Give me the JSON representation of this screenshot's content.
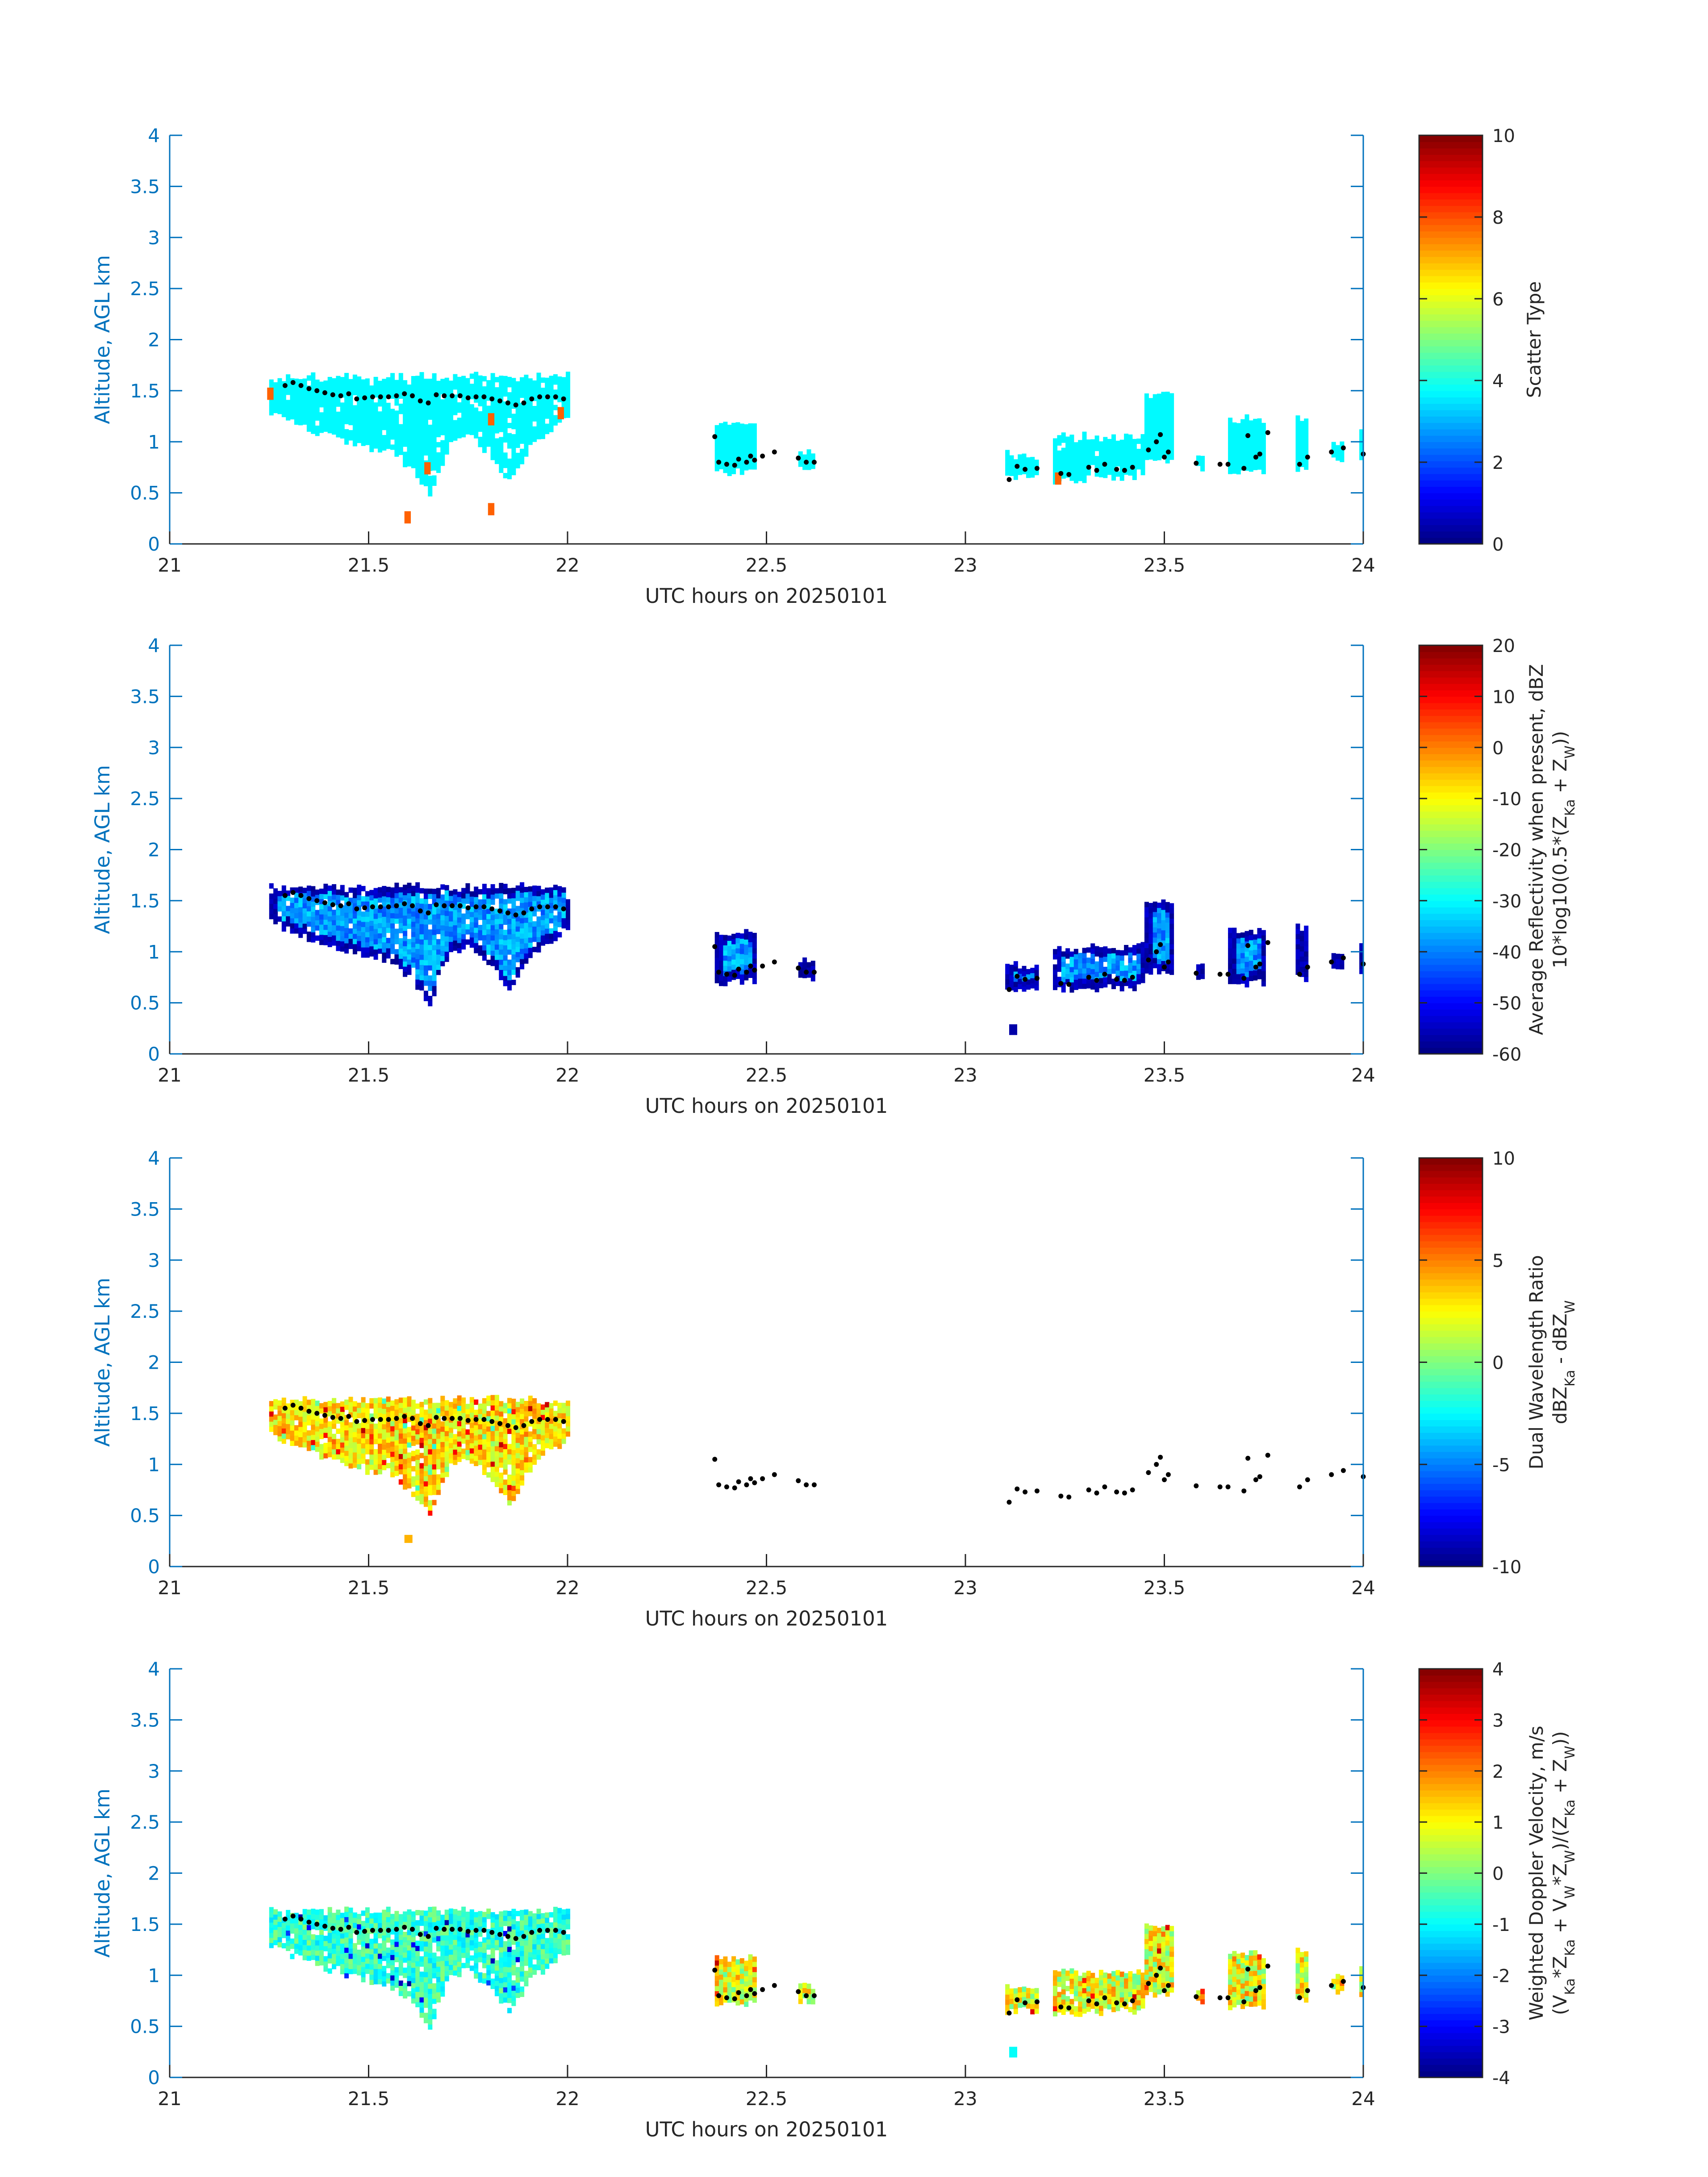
{
  "chart_data": [
    {
      "type": "heatmap",
      "panel": 1,
      "x_range": [
        21,
        24
      ],
      "y_range": [
        0,
        4
      ],
      "xticks": [
        "21",
        "21.5",
        "22",
        "22.5",
        "23",
        "23.5",
        "24"
      ],
      "yticks": [
        "0",
        "0.5",
        "1",
        "1.5",
        "2",
        "2.5",
        "3",
        "3.5",
        "4"
      ],
      "xlabel": "UTC hours on 20250101",
      "ylabel": "Altitude, AGL km",
      "colorbar": {
        "label": "Scatter Type",
        "range": [
          0,
          10
        ],
        "ticks": [
          "0",
          "2",
          "4",
          "6",
          "8",
          "10"
        ],
        "colormap": "jet"
      },
      "fill_value": 3.7,
      "fill_description": "mostly uniform cyan (scatter type ~3.7) with a few red-orange cells (~7.8)",
      "outlier_value": 7.8,
      "outlier_cells": [
        [
          21.245,
          1.47
        ],
        [
          21.975,
          1.28
        ],
        [
          21.8,
          1.22
        ],
        [
          21.59,
          0.26
        ],
        [
          21.8,
          0.34
        ],
        [
          21.64,
          0.74
        ],
        [
          23.225,
          0.64
        ]
      ],
      "grid": false
    },
    {
      "type": "heatmap",
      "panel": 2,
      "x_range": [
        21,
        24
      ],
      "y_range": [
        0,
        4
      ],
      "xticks": [
        "21",
        "21.5",
        "22",
        "22.5",
        "23",
        "23.5",
        "24"
      ],
      "yticks": [
        "0",
        "0.5",
        "1",
        "1.5",
        "2",
        "2.5",
        "3",
        "3.5",
        "4"
      ],
      "xlabel": "UTC hours on 20250101",
      "ylabel": "Altitude, AGL km",
      "colorbar": {
        "label_line1": "Average Reflectivity when present, dBZ",
        "label_line2": "10*log10(0.5*(Z",
        "label_sub1": "Ka",
        "label_mid": " + Z",
        "label_sub2": "W",
        "label_end": "))",
        "range": [
          -60,
          20
        ],
        "ticks": [
          "-60",
          "-50",
          "-40",
          "-30",
          "-20",
          "-10",
          "0",
          "10",
          "20"
        ],
        "colormap": "jet"
      },
      "fill_description": "about -35 to -45 dBZ in cloud interiors, about -55 dBZ at edges",
      "interior_value": -38,
      "edge_value": -56,
      "grid": false
    },
    {
      "type": "heatmap",
      "panel": 3,
      "x_range": [
        21,
        24
      ],
      "y_range": [
        0,
        4
      ],
      "xticks": [
        "21",
        "21.5",
        "22",
        "22.5",
        "23",
        "23.5",
        "24"
      ],
      "yticks": [
        "0",
        "0.5",
        "1",
        "1.5",
        "2",
        "2.5",
        "3",
        "3.5",
        "4"
      ],
      "xlabel": "UTC hours on 20250101",
      "ylabel": "Altitude, AGL km",
      "colorbar": {
        "label_line1": "Dual Wavelength Ratio",
        "label_line2": "dBZ",
        "label_sub1": "Ka",
        "label_mid": " - dBZ",
        "label_sub2": "W",
        "label_end": "",
        "range": [
          -10,
          10
        ],
        "ticks": [
          "-10",
          "-5",
          "0",
          "5",
          "10"
        ],
        "colormap": "jet"
      },
      "fill_description": "values mostly ~2 to 5 dB (yellow/orange) in 21.25–22 h cloud only",
      "value_range": [
        0.5,
        9
      ],
      "grid": false
    },
    {
      "type": "heatmap",
      "panel": 4,
      "x_range": [
        21,
        24
      ],
      "y_range": [
        0,
        4
      ],
      "xticks": [
        "21",
        "21.5",
        "22",
        "22.5",
        "23",
        "23.5",
        "24"
      ],
      "yticks": [
        "0",
        "0.5",
        "1",
        "1.5",
        "2",
        "2.5",
        "3",
        "3.5",
        "4"
      ],
      "xlabel": "UTC hours on 20250101",
      "ylabel": "Altitude, AGL km",
      "colorbar": {
        "label_line1": "Weighted Doppler Velocity, m/s",
        "label_line2": "(V",
        "label_parts": [
          [
            "(V",
            ""
          ],
          [
            "Ka",
            "sub"
          ],
          [
            "*Z",
            ""
          ],
          [
            "Ka",
            "sub"
          ],
          [
            " + V",
            ""
          ],
          [
            "W",
            "sub"
          ],
          [
            "*Z",
            ""
          ],
          [
            "W",
            "sub"
          ],
          [
            ")/(Z",
            ""
          ],
          [
            "Ka",
            "sub"
          ],
          [
            " + Z",
            ""
          ],
          [
            "W",
            "sub"
          ],
          [
            "))",
            ""
          ]
        ],
        "range": [
          -4,
          4
        ],
        "ticks": [
          "-4",
          "-3",
          "-2",
          "-1",
          "0",
          "1",
          "2",
          "3",
          "4"
        ],
        "colormap": "jet"
      },
      "fill_description": "mostly -1 to 0 m/s (cyan/green) in 21.25–22 h cloud; 0 to 2 m/s (green/yellow/orange) in later cells",
      "value_range": [
        -3.5,
        3
      ],
      "grid": false
    }
  ],
  "cloud_regions": [
    {
      "x0": 21.25,
      "x1": 22.0,
      "top": 1.64,
      "base_profile": [
        [
          21.25,
          1.3
        ],
        [
          21.3,
          1.2
        ],
        [
          21.35,
          1.12
        ],
        [
          21.4,
          1.05
        ],
        [
          21.45,
          1.0
        ],
        [
          21.5,
          0.92
        ],
        [
          21.55,
          0.9
        ],
        [
          21.6,
          0.75
        ],
        [
          21.65,
          0.5
        ],
        [
          21.7,
          1.0
        ],
        [
          21.75,
          1.05
        ],
        [
          21.8,
          0.88
        ],
        [
          21.85,
          0.62
        ],
        [
          21.9,
          0.95
        ],
        [
          21.95,
          1.1
        ],
        [
          22.0,
          1.25
        ]
      ]
    },
    {
      "x0": 22.37,
      "x1": 22.47,
      "top": 1.18,
      "base_profile": [
        [
          22.37,
          0.7
        ],
        [
          22.47,
          0.72
        ]
      ]
    },
    {
      "x0": 22.58,
      "x1": 22.62,
      "top": 0.92,
      "base_profile": [
        [
          22.58,
          0.76
        ],
        [
          22.62,
          0.74
        ]
      ]
    },
    {
      "x0": 23.1,
      "x1": 23.18,
      "top": 0.88,
      "base_profile": [
        [
          23.1,
          0.64
        ],
        [
          23.18,
          0.66
        ]
      ]
    },
    {
      "x0": 23.22,
      "x1": 23.45,
      "top": 1.05,
      "base_profile": [
        [
          23.22,
          0.62
        ],
        [
          23.45,
          0.66
        ]
      ]
    },
    {
      "x0": 23.45,
      "x1": 23.52,
      "top": 1.48,
      "base_profile": [
        [
          23.45,
          0.82
        ],
        [
          23.52,
          0.8
        ]
      ]
    },
    {
      "x0": 23.58,
      "x1": 23.6,
      "top": 0.88,
      "base_profile": [
        [
          23.58,
          0.74
        ],
        [
          23.6,
          0.74
        ]
      ]
    },
    {
      "x0": 23.66,
      "x1": 23.75,
      "top": 1.22,
      "base_profile": [
        [
          23.66,
          0.68
        ],
        [
          23.75,
          0.7
        ]
      ]
    },
    {
      "x0": 23.83,
      "x1": 23.86,
      "top": 1.25,
      "base_profile": [
        [
          23.83,
          0.74
        ],
        [
          23.86,
          0.74
        ]
      ]
    },
    {
      "x0": 23.92,
      "x1": 23.95,
      "top": 1.0,
      "base_profile": [
        [
          23.92,
          0.84
        ],
        [
          23.95,
          0.84
        ]
      ]
    },
    {
      "x0": 23.99,
      "x1": 24.0,
      "top": 1.1,
      "base_profile": [
        [
          23.99,
          0.8
        ],
        [
          24.0,
          0.8
        ]
      ]
    }
  ],
  "cloud_top_points": [
    [
      21.29,
      1.55
    ],
    [
      21.31,
      1.58
    ],
    [
      21.33,
      1.55
    ],
    [
      21.35,
      1.52
    ],
    [
      21.37,
      1.5
    ],
    [
      21.39,
      1.48
    ],
    [
      21.41,
      1.46
    ],
    [
      21.43,
      1.45
    ],
    [
      21.45,
      1.47
    ],
    [
      21.47,
      1.42
    ],
    [
      21.49,
      1.43
    ],
    [
      21.51,
      1.44
    ],
    [
      21.53,
      1.44
    ],
    [
      21.55,
      1.44
    ],
    [
      21.57,
      1.45
    ],
    [
      21.59,
      1.47
    ],
    [
      21.61,
      1.45
    ],
    [
      21.63,
      1.4
    ],
    [
      21.65,
      1.38
    ],
    [
      21.67,
      1.46
    ],
    [
      21.69,
      1.45
    ],
    [
      21.71,
      1.45
    ],
    [
      21.73,
      1.45
    ],
    [
      21.75,
      1.43
    ],
    [
      21.77,
      1.44
    ],
    [
      21.79,
      1.44
    ],
    [
      21.81,
      1.42
    ],
    [
      21.83,
      1.4
    ],
    [
      21.85,
      1.38
    ],
    [
      21.87,
      1.36
    ],
    [
      21.89,
      1.38
    ],
    [
      21.91,
      1.42
    ],
    [
      21.93,
      1.44
    ],
    [
      21.95,
      1.44
    ],
    [
      21.97,
      1.44
    ],
    [
      21.99,
      1.42
    ],
    [
      22.37,
      1.05
    ],
    [
      22.38,
      0.8
    ],
    [
      22.4,
      0.78
    ],
    [
      22.42,
      0.77
    ],
    [
      22.43,
      0.83
    ],
    [
      22.45,
      0.8
    ],
    [
      22.46,
      0.86
    ],
    [
      22.47,
      0.82
    ],
    [
      22.49,
      0.86
    ],
    [
      22.52,
      0.9
    ],
    [
      22.58,
      0.84
    ],
    [
      22.6,
      0.8
    ],
    [
      22.62,
      0.8
    ],
    [
      23.11,
      0.63
    ],
    [
      23.13,
      0.76
    ],
    [
      23.15,
      0.73
    ],
    [
      23.18,
      0.74
    ],
    [
      23.24,
      0.69
    ],
    [
      23.26,
      0.68
    ],
    [
      23.31,
      0.75
    ],
    [
      23.33,
      0.72
    ],
    [
      23.35,
      0.78
    ],
    [
      23.38,
      0.73
    ],
    [
      23.4,
      0.72
    ],
    [
      23.42,
      0.75
    ],
    [
      23.46,
      0.92
    ],
    [
      23.48,
      1.0
    ],
    [
      23.49,
      1.07
    ],
    [
      23.5,
      0.85
    ],
    [
      23.51,
      0.9
    ],
    [
      23.58,
      0.79
    ],
    [
      23.64,
      0.78
    ],
    [
      23.66,
      0.78
    ],
    [
      23.7,
      0.74
    ],
    [
      23.71,
      1.06
    ],
    [
      23.73,
      0.85
    ],
    [
      23.74,
      0.88
    ],
    [
      23.76,
      1.09
    ],
    [
      23.84,
      0.78
    ],
    [
      23.86,
      0.85
    ],
    [
      23.92,
      0.9
    ],
    [
      23.95,
      0.94
    ],
    [
      24.0,
      0.88
    ]
  ],
  "dwr_only_ranges": [
    [
      21.25,
      22.0
    ]
  ],
  "dwr_extra_points": [
    [
      21.59,
      0.28
    ]
  ],
  "reflectivity_extra_points": [
    [
      23.11,
      0.24
    ]
  ],
  "velocity_extra_points": [
    [
      23.11,
      0.25
    ]
  ]
}
